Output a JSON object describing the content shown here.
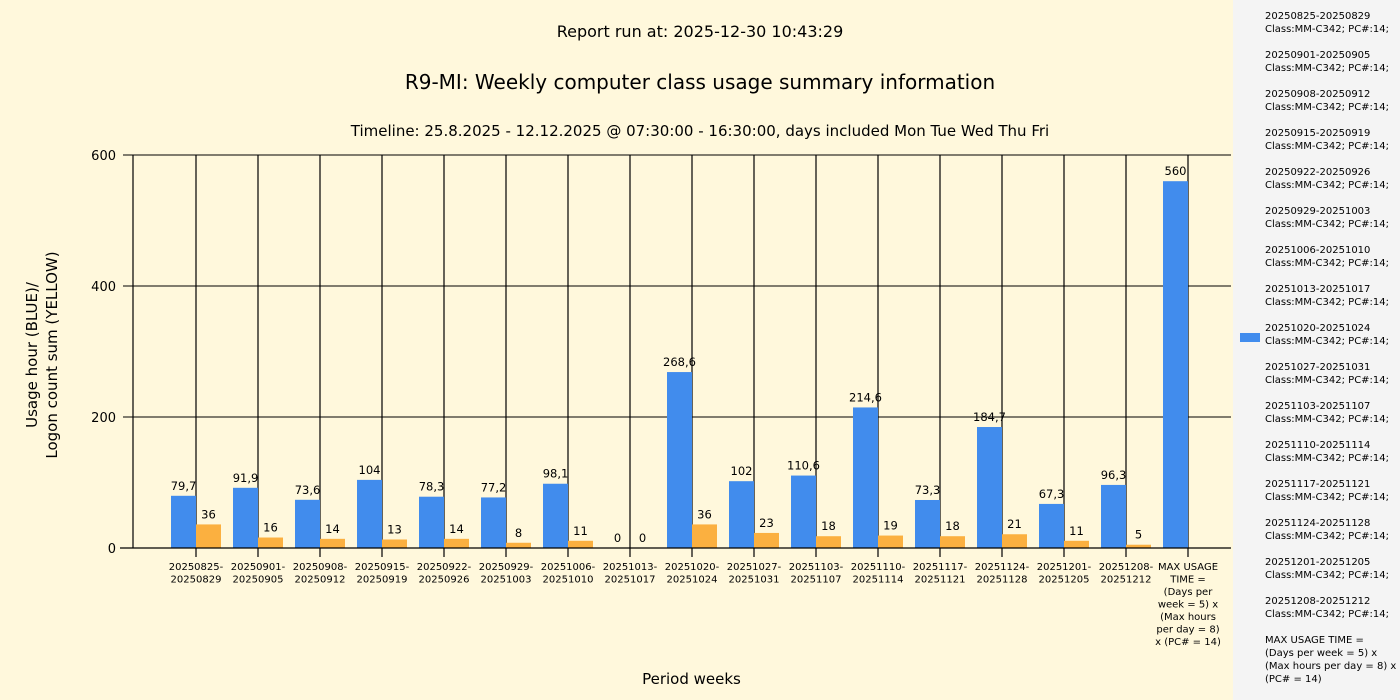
{
  "header": {
    "report_run": "Report run at: 2025-12-30 10:43:29"
  },
  "chart_data": {
    "type": "bar",
    "title": "R9-MI: Weekly computer class usage summary information",
    "subtitle": "Timeline:  25.8.2025  - 12.12.2025  @  07:30:00 -  16:30:00, days included Mon Tue Wed Thu Fri",
    "xlabel": "Period weeks",
    "ylabel_lines": [
      "Usage hour (BLUE)/",
      "Logon count sum (YELLOW)"
    ],
    "ylim": [
      0,
      600
    ],
    "yticks": [
      "0",
      "200",
      "400",
      "600"
    ],
    "grid": true,
    "categories": [
      [
        "20250825-",
        "20250829"
      ],
      [
        "20250901-",
        "20250905"
      ],
      [
        "20250908-",
        "20250912"
      ],
      [
        "20250915-",
        "20250919"
      ],
      [
        "20250922-",
        "20250926"
      ],
      [
        "20250929-",
        "20251003"
      ],
      [
        "20251006-",
        "20251010"
      ],
      [
        "20251013-",
        "20251017"
      ],
      [
        "20251020-",
        "20251024"
      ],
      [
        "20251027-",
        "20251031"
      ],
      [
        "20251103-",
        "20251107"
      ],
      [
        "20251110-",
        "20251114"
      ],
      [
        "20251117-",
        "20251121"
      ],
      [
        "20251124-",
        "20251128"
      ],
      [
        "20251201-",
        "20251205"
      ],
      [
        "20251208-",
        "20251212"
      ],
      [
        "MAX USAGE",
        "TIME =",
        "(Days per",
        "week = 5) x",
        "(Max hours",
        "per day = 8)",
        "x (PC# = 14)"
      ]
    ],
    "series": [
      {
        "name": "Usage hour",
        "color": "#418ced",
        "values": [
          79.7,
          91.9,
          73.6,
          104,
          78.3,
          77.2,
          98.1,
          0,
          268.6,
          102,
          110.6,
          214.6,
          73.3,
          184.7,
          67.3,
          96.3,
          560
        ],
        "labels": [
          "79,7",
          "91,9",
          "73,6",
          "104",
          "78,3",
          "77,2",
          "98,1",
          "0",
          "268,6",
          "102",
          "110,6",
          "214,6",
          "73,3",
          "184,7",
          "67,3",
          "96,3",
          "560"
        ]
      },
      {
        "name": "Logon count sum",
        "color": "#fbb040",
        "values": [
          36,
          16,
          14,
          13,
          14,
          8,
          11,
          0,
          36,
          23,
          18,
          19,
          18,
          21,
          11,
          5,
          null
        ],
        "labels": [
          "36",
          "16",
          "14",
          "13",
          "14",
          "8",
          "11",
          "0",
          "36",
          "23",
          "18",
          "19",
          "18",
          "21",
          "11",
          "5",
          null
        ]
      }
    ],
    "legend_placement": "right",
    "legend": [
      [
        "20250825-20250829",
        "Class:MM-C342; PC#:14;"
      ],
      [
        "20250901-20250905",
        "Class:MM-C342; PC#:14;"
      ],
      [
        "20250908-20250912",
        "Class:MM-C342; PC#:14;"
      ],
      [
        "20250915-20250919",
        "Class:MM-C342; PC#:14;"
      ],
      [
        "20250922-20250926",
        "Class:MM-C342; PC#:14;"
      ],
      [
        "20250929-20251003",
        "Class:MM-C342; PC#:14;"
      ],
      [
        "20251006-20251010",
        "Class:MM-C342; PC#:14;"
      ],
      [
        "20251013-20251017",
        "Class:MM-C342; PC#:14;"
      ],
      [
        "20251020-20251024",
        "Class:MM-C342; PC#:14;"
      ],
      [
        "20251027-20251031",
        "Class:MM-C342; PC#:14;"
      ],
      [
        "20251103-20251107",
        "Class:MM-C342; PC#:14;"
      ],
      [
        "20251110-20251114",
        "Class:MM-C342; PC#:14;"
      ],
      [
        "20251117-20251121",
        "Class:MM-C342; PC#:14;"
      ],
      [
        "20251124-20251128",
        "Class:MM-C342; PC#:14;"
      ],
      [
        "20251201-20251205",
        "Class:MM-C342; PC#:14;"
      ],
      [
        "20251208-20251212",
        "Class:MM-C342; PC#:14;"
      ],
      [
        "MAX USAGE TIME =",
        "(Days per week = 5) x (Max hours per day = 8) x (PC# = 14)"
      ]
    ],
    "legend_swatch_index": 8
  }
}
